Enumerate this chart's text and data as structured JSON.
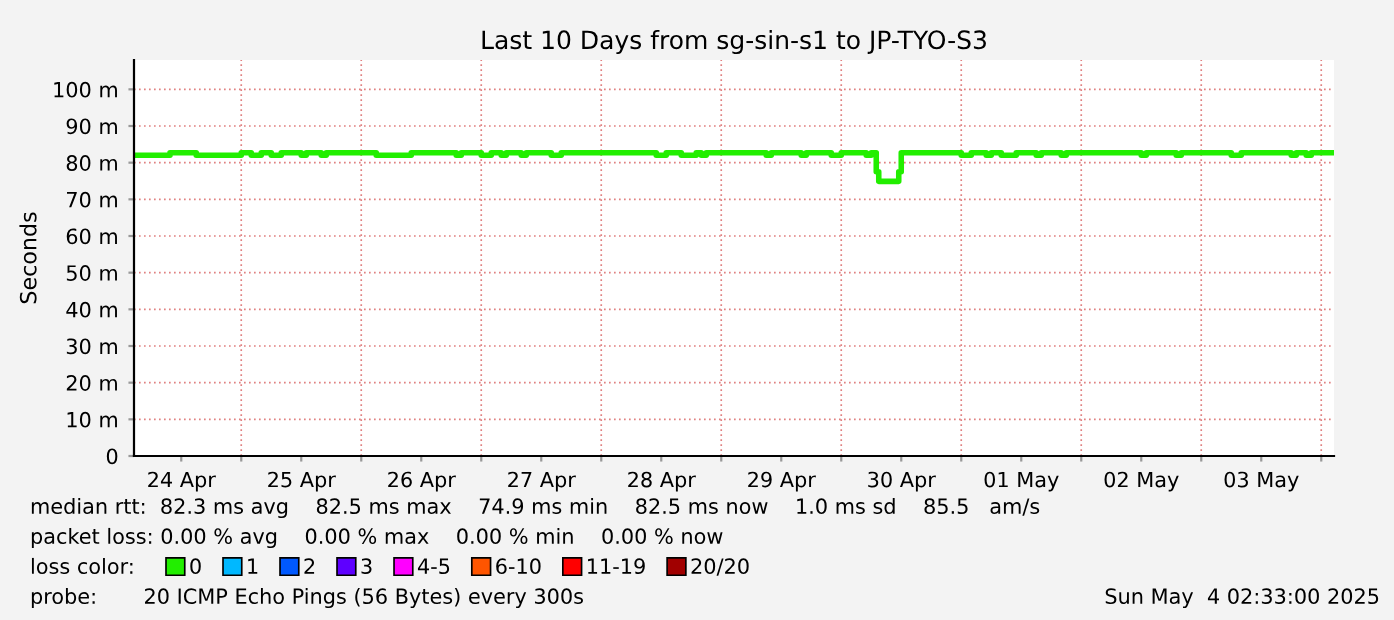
{
  "chart_data": {
    "type": "step",
    "title": "Last 10 Days from sg-sin-s1 to JP-TYO-S3",
    "ylabel": "Seconds",
    "x": [
      "2025-04-24T02:33",
      "2025-04-24T09:45",
      "2025-04-24T15:00",
      "2025-04-25T00:00",
      "2025-04-25T02:00",
      "2025-04-25T04:00",
      "2025-04-25T06:00",
      "2025-04-25T08:00",
      "2025-04-25T12:00",
      "2025-04-25T13:00",
      "2025-04-25T16:00",
      "2025-04-25T17:00",
      "2025-04-26T03:00",
      "2025-04-26T10:00",
      "2025-04-26T19:00",
      "2025-04-26T20:00",
      "2025-04-27T00:00",
      "2025-04-27T02:00",
      "2025-04-27T04:00",
      "2025-04-27T05:00",
      "2025-04-27T08:00",
      "2025-04-27T09:00",
      "2025-04-27T14:00",
      "2025-04-27T16:00",
      "2025-04-28T11:00",
      "2025-04-28T13:00",
      "2025-04-28T16:00",
      "2025-04-28T19:00",
      "2025-04-28T20:00",
      "2025-04-28T21:00",
      "2025-04-29T09:00",
      "2025-04-29T10:00",
      "2025-04-29T16:00",
      "2025-04-29T17:00",
      "2025-04-29T22:00",
      "2025-04-30T00:00",
      "2025-04-30T05:00",
      "2025-04-30T06:00",
      "2025-04-30T07:00",
      "2025-04-30T07:30",
      "2025-04-30T11:30",
      "2025-04-30T12:00",
      "2025-05-01T00:00",
      "2025-05-01T02:00",
      "2025-05-01T05:00",
      "2025-05-01T06:00",
      "2025-05-01T08:00",
      "2025-05-01T11:00",
      "2025-05-01T15:00",
      "2025-05-01T16:00",
      "2025-05-01T20:00",
      "2025-05-01T21:00",
      "2025-05-02T12:00",
      "2025-05-02T13:00",
      "2025-05-02T19:00",
      "2025-05-02T20:00",
      "2025-05-03T06:00",
      "2025-05-03T08:00",
      "2025-05-03T18:00",
      "2025-05-03T19:00",
      "2025-05-03T21:00",
      "2025-05-03T22:00",
      "2025-05-04T02:33"
    ],
    "series": [
      {
        "name": "0",
        "color": "#22ee00",
        "values": [
          82.0,
          82.7,
          82.0,
          82.7,
          82.0,
          82.7,
          82.0,
          82.7,
          82.0,
          82.7,
          82.0,
          82.7,
          82.0,
          82.7,
          82.0,
          82.7,
          82.0,
          82.7,
          82.0,
          82.7,
          82.0,
          82.7,
          82.0,
          82.7,
          82.0,
          82.7,
          82.0,
          82.7,
          82.0,
          82.7,
          82.0,
          82.7,
          82.0,
          82.7,
          82.0,
          82.7,
          82.0,
          82.7,
          77.5,
          74.9,
          77.5,
          82.7,
          82.0,
          82.7,
          82.0,
          82.7,
          82.0,
          82.7,
          82.0,
          82.7,
          82.0,
          82.7,
          82.0,
          82.7,
          82.0,
          82.7,
          82.0,
          82.7,
          82.0,
          82.7,
          82.0,
          82.7,
          82.7
        ]
      },
      {
        "name": "1",
        "color": "#00b8ff",
        "values": [
          null,
          null,
          null,
          null,
          null,
          null,
          null,
          null,
          null,
          null,
          null,
          null,
          null,
          null,
          null,
          null,
          null,
          null,
          null,
          null,
          null,
          null,
          null,
          null,
          null,
          null,
          null,
          null,
          null,
          null,
          null,
          null,
          null,
          null,
          null,
          null,
          null,
          null,
          null,
          null,
          null,
          null,
          null,
          null,
          null,
          null,
          null,
          null,
          null,
          null,
          null,
          null,
          null,
          null,
          null,
          null,
          null,
          null,
          null,
          null,
          null,
          null,
          null
        ]
      },
      {
        "name": "2",
        "color": "#0059ff",
        "values": [
          null,
          null,
          null,
          null,
          null,
          null,
          null,
          null,
          null,
          null,
          null,
          null,
          null,
          null,
          null,
          null,
          null,
          null,
          null,
          null,
          null,
          null,
          null,
          null,
          null,
          null,
          null,
          null,
          null,
          null,
          null,
          null,
          null,
          null,
          null,
          null,
          null,
          null,
          null,
          null,
          null,
          null,
          null,
          null,
          null,
          null,
          null,
          null,
          null,
          null,
          null,
          null,
          null,
          null,
          null,
          null,
          null,
          null,
          null,
          null,
          null,
          null,
          null
        ]
      },
      {
        "name": "3",
        "color": "#5e00ff",
        "values": [
          null,
          null,
          null,
          null,
          null,
          null,
          null,
          null,
          null,
          null,
          null,
          null,
          null,
          null,
          null,
          null,
          null,
          null,
          null,
          null,
          null,
          null,
          null,
          null,
          null,
          null,
          null,
          null,
          null,
          null,
          null,
          null,
          null,
          null,
          null,
          null,
          null,
          null,
          null,
          null,
          null,
          null,
          null,
          null,
          null,
          null,
          null,
          null,
          null,
          null,
          null,
          null,
          null,
          null,
          null,
          null,
          null,
          null,
          null,
          null,
          null,
          null,
          null
        ]
      },
      {
        "name": "4-5",
        "color": "#ff00ff",
        "values": [
          null,
          null,
          null,
          null,
          null,
          null,
          null,
          null,
          null,
          null,
          null,
          null,
          null,
          null,
          null,
          null,
          null,
          null,
          null,
          null,
          null,
          null,
          null,
          null,
          null,
          null,
          null,
          null,
          null,
          null,
          null,
          null,
          null,
          null,
          null,
          null,
          null,
          null,
          null,
          null,
          null,
          null,
          null,
          null,
          null,
          null,
          null,
          null,
          null,
          null,
          null,
          null,
          null,
          null,
          null,
          null,
          null,
          null,
          null,
          null,
          null,
          null,
          null
        ]
      },
      {
        "name": "6-10",
        "color": "#ff5500",
        "values": [
          null,
          null,
          null,
          null,
          null,
          null,
          null,
          null,
          null,
          null,
          null,
          null,
          null,
          null,
          null,
          null,
          null,
          null,
          null,
          null,
          null,
          null,
          null,
          null,
          null,
          null,
          null,
          null,
          null,
          null,
          null,
          null,
          null,
          null,
          null,
          null,
          null,
          null,
          null,
          null,
          null,
          null,
          null,
          null,
          null,
          null,
          null,
          null,
          null,
          null,
          null,
          null,
          null,
          null,
          null,
          null,
          null,
          null,
          null,
          null,
          null,
          null,
          null
        ]
      },
      {
        "name": "11-19",
        "color": "#ff0000",
        "values": [
          null,
          null,
          null,
          null,
          null,
          null,
          null,
          null,
          null,
          null,
          null,
          null,
          null,
          null,
          null,
          null,
          null,
          null,
          null,
          null,
          null,
          null,
          null,
          null,
          null,
          null,
          null,
          null,
          null,
          null,
          null,
          null,
          null,
          null,
          null,
          null,
          null,
          null,
          null,
          null,
          null,
          null,
          null,
          null,
          null,
          null,
          null,
          null,
          null,
          null,
          null,
          null,
          null,
          null,
          null,
          null,
          null,
          null,
          null,
          null,
          null,
          null,
          null
        ]
      },
      {
        "name": "20/20",
        "color": "#a10000",
        "values": [
          null,
          null,
          null,
          null,
          null,
          null,
          null,
          null,
          null,
          null,
          null,
          null,
          null,
          null,
          null,
          null,
          null,
          null,
          null,
          null,
          null,
          null,
          null,
          null,
          null,
          null,
          null,
          null,
          null,
          null,
          null,
          null,
          null,
          null,
          null,
          null,
          null,
          null,
          null,
          null,
          null,
          null,
          null,
          null,
          null,
          null,
          null,
          null,
          null,
          null,
          null,
          null,
          null,
          null,
          null,
          null,
          null,
          null,
          null,
          null,
          null,
          null,
          null
        ]
      }
    ],
    "legend": "bottom",
    "legend_title": "loss color:",
    "xlim": [
      "2025-04-24T02:33",
      "2025-05-04T02:33"
    ],
    "xticks": [
      {
        "value": "2025-04-24T12:00",
        "label": "24 Apr"
      },
      {
        "value": "2025-04-25T00:00",
        "label": null
      },
      {
        "value": "2025-04-25T12:00",
        "label": "25 Apr"
      },
      {
        "value": "2025-04-26T00:00",
        "label": null
      },
      {
        "value": "2025-04-26T12:00",
        "label": "26 Apr"
      },
      {
        "value": "2025-04-27T00:00",
        "label": null
      },
      {
        "value": "2025-04-27T12:00",
        "label": "27 Apr"
      },
      {
        "value": "2025-04-28T00:00",
        "label": null
      },
      {
        "value": "2025-04-28T12:00",
        "label": "28 Apr"
      },
      {
        "value": "2025-04-29T00:00",
        "label": null
      },
      {
        "value": "2025-04-29T12:00",
        "label": "29 Apr"
      },
      {
        "value": "2025-04-30T00:00",
        "label": null
      },
      {
        "value": "2025-04-30T12:00",
        "label": "30 Apr"
      },
      {
        "value": "2025-05-01T00:00",
        "label": null
      },
      {
        "value": "2025-05-01T12:00",
        "label": "01 May"
      },
      {
        "value": "2025-05-02T00:00",
        "label": null
      },
      {
        "value": "2025-05-02T12:00",
        "label": "02 May"
      },
      {
        "value": "2025-05-03T00:00",
        "label": null
      },
      {
        "value": "2025-05-03T12:00",
        "label": "03 May"
      },
      {
        "value": "2025-05-04T00:00",
        "label": null
      }
    ],
    "ylim": [
      0,
      108
    ],
    "yticks": [
      0,
      {
        "value": 10,
        "label": "10 m"
      },
      {
        "value": 20,
        "label": "20 m"
      },
      {
        "value": 30,
        "label": "30 m"
      },
      {
        "value": 40,
        "label": "40 m"
      },
      {
        "value": 50,
        "label": "50 m"
      },
      {
        "value": 60,
        "label": "60 m"
      },
      {
        "value": 70,
        "label": "70 m"
      },
      {
        "value": 80,
        "label": "80 m"
      },
      {
        "value": 90,
        "label": "90 m"
      },
      {
        "value": 100,
        "label": "100 m"
      }
    ],
    "grid": true,
    "line_style": "solid",
    "annotations": [
      "median rtt:  82.3 ms avg    82.5 ms max    74.9 ms min    82.5 ms now    1.0 ms sd    85.5   am/s",
      "packet loss: 0.00 % avg    0.00 % max    0.00 % min    0.00 % now",
      "probe:       20 ICMP Echo Pings (56 Bytes) every 300s",
      "Sun May  4 02:33:00 2025"
    ]
  }
}
